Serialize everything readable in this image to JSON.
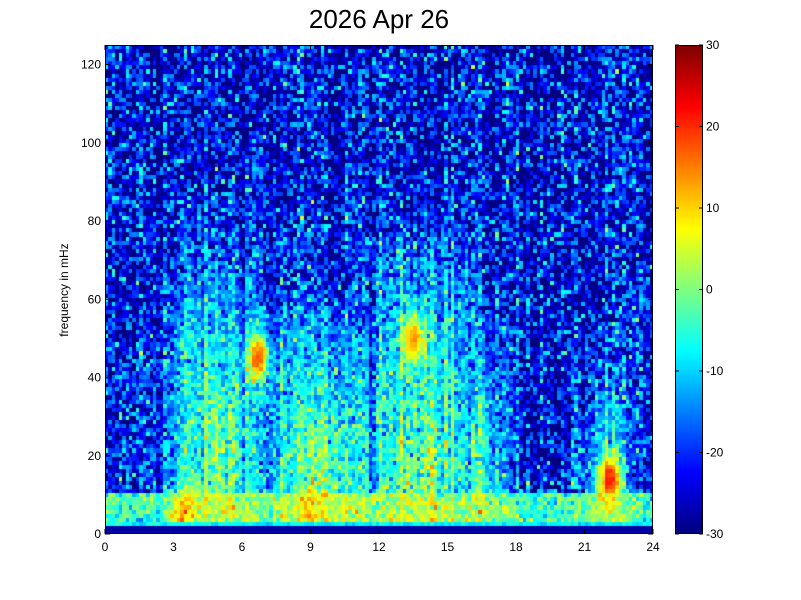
{
  "chart_data": {
    "type": "heatmap",
    "title": "2026 Apr 26",
    "xlabel": "",
    "ylabel": "frequency in mHz",
    "x_ticks": [
      "0",
      "3",
      "6",
      "9",
      "12",
      "15",
      "18",
      "21",
      "24"
    ],
    "y_ticks": [
      "0",
      "20",
      "40",
      "60",
      "80",
      "100",
      "120"
    ],
    "xlim": [
      0,
      24
    ],
    "ylim": [
      0,
      125
    ],
    "colorbar": {
      "colormap": "jet",
      "clim": [
        -30,
        30
      ],
      "ticks": [
        "30",
        "20",
        "10",
        "0",
        "-10",
        "-20",
        "-30"
      ]
    },
    "grid": false,
    "grid_resolution": {
      "time_bins": 160,
      "freq_bins": 120
    },
    "bursts": [
      {
        "t_center": 5.0,
        "t_width": 2.5,
        "top_freq": 75,
        "strength": 0.9
      },
      {
        "t_center": 9.5,
        "t_width": 3.0,
        "top_freq": 62,
        "strength": 0.9
      },
      {
        "t_center": 14.0,
        "t_width": 2.5,
        "top_freq": 80,
        "strength": 1.0
      },
      {
        "t_center": 16.5,
        "t_width": 1.5,
        "top_freq": 55,
        "strength": 0.7
      },
      {
        "t_center": 22.0,
        "t_width": 1.0,
        "top_freq": 45,
        "strength": 0.75
      }
    ],
    "hotspots": [
      {
        "t": 6.7,
        "f": 45,
        "level": 26
      },
      {
        "t": 13.5,
        "f": 50,
        "level": 20
      },
      {
        "t": 22.1,
        "f": 14,
        "level": 28
      },
      {
        "t": 3.5,
        "f": 5,
        "level": 22
      },
      {
        "t": 9.0,
        "f": 5,
        "level": 22
      }
    ],
    "background_level_high_freq": -24,
    "low_freq_band_level": 8
  }
}
